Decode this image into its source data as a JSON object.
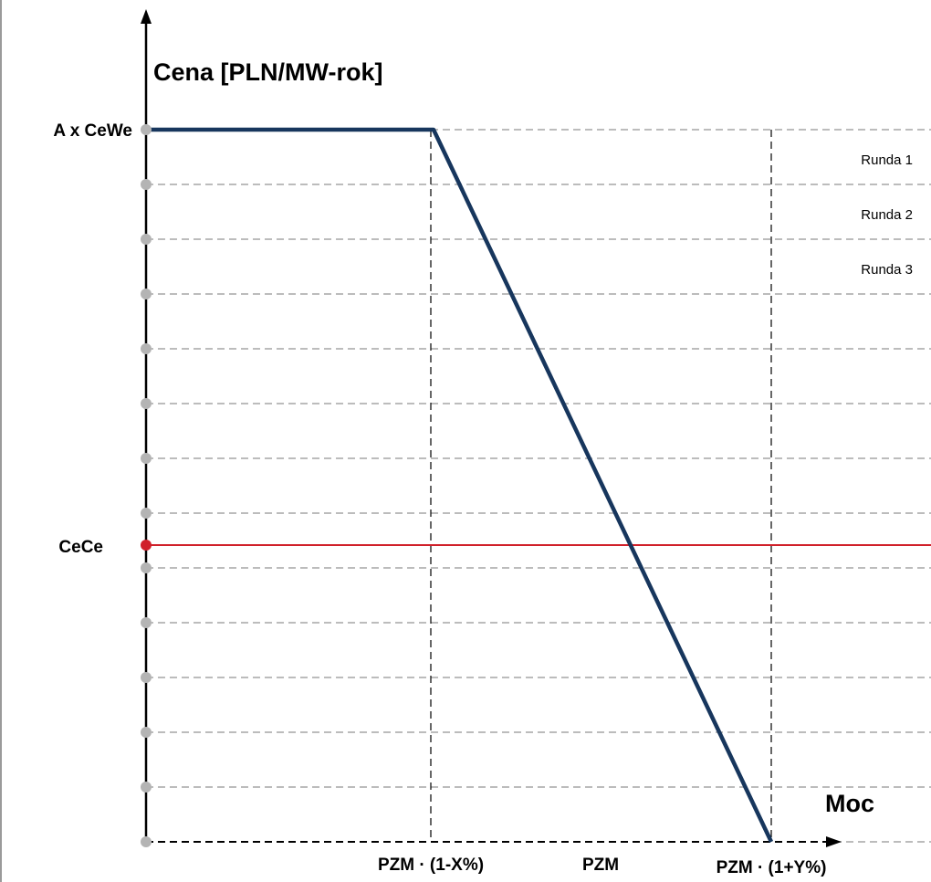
{
  "chart_data": {
    "type": "line",
    "title": "",
    "ylabel": "Cena [PLN/MW-rok]",
    "xlabel": "Moc",
    "y_tick_labels": {
      "top": "A x CeWe",
      "reference": "CeCe"
    },
    "x_tick_labels": [
      "PZM · (1-X%)",
      "PZM",
      "PZM · (1+Y%)"
    ],
    "round_labels": [
      "Runda 1",
      "Runda 2",
      "Runda 3"
    ],
    "demand_curve": {
      "name": "",
      "points": [
        {
          "x": 0,
          "y": "A x CeWe"
        },
        {
          "x": "PZM · (1-X%)",
          "y": "A x CeWe"
        },
        {
          "x": "PZM · (1+Y%)",
          "y": 0
        }
      ]
    },
    "reference_line": {
      "label": "CeCe"
    },
    "grid": true,
    "colors": {
      "curve": "#17365d",
      "reference": "#d0202a",
      "grid": "#a6a6a6",
      "tick_dot": "#b4b4b4",
      "axis": "#000000"
    }
  }
}
